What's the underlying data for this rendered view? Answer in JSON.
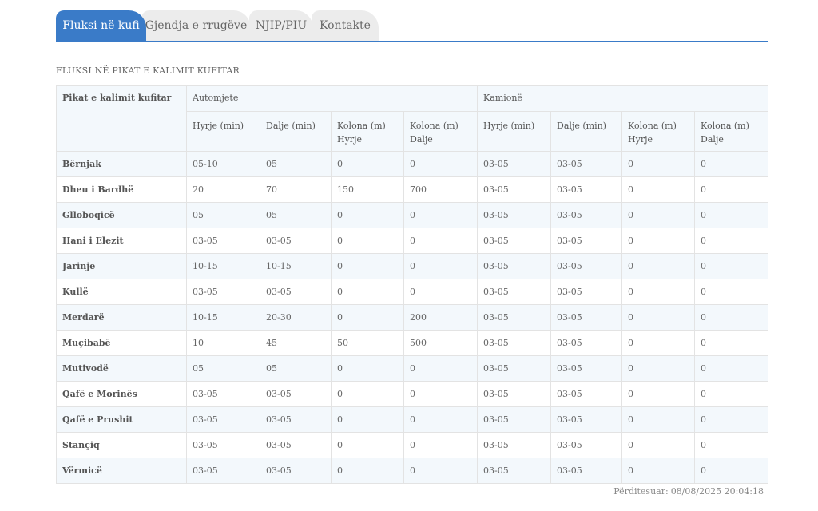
{
  "tabs": [
    {
      "label": "Fluksi në kufi",
      "active": true
    },
    {
      "label": "Gjendja e rrugëve",
      "active": false
    },
    {
      "label": "NJIP/PIU",
      "active": false
    },
    {
      "label": "Kontakte",
      "active": false
    }
  ],
  "section_title": "FLUKSI NË PIKAT E KALIMIT KUFITAR",
  "table": {
    "first_header": "Pikat e kalimit kufitar",
    "groups": [
      "Automjete",
      "Kamionë"
    ],
    "subheaders": [
      [
        "Hyrje (min)",
        "Dalje (min)",
        "Kolona (m)",
        "Hyrje",
        "Kolona (m)",
        "Dalje"
      ],
      [
        "Hyrje (min)",
        "Dalje (min)",
        "Kolona (m)",
        "Hyrje",
        "Kolona (m)",
        "Dalje"
      ]
    ],
    "rows": [
      [
        "Bërnjak",
        "05-10",
        "05",
        "0",
        "0",
        "03-05",
        "03-05",
        "0",
        "0"
      ],
      [
        "Dheu i Bardhë",
        "20",
        "70",
        "150",
        "700",
        "03-05",
        "03-05",
        "0",
        "0"
      ],
      [
        "Glloboqicë",
        "05",
        "05",
        "0",
        "0",
        "03-05",
        "03-05",
        "0",
        "0"
      ],
      [
        "Hani i Elezit",
        "03-05",
        "03-05",
        "0",
        "0",
        "03-05",
        "03-05",
        "0",
        "0"
      ],
      [
        "Jarinje",
        "10-15",
        "10-15",
        "0",
        "0",
        "03-05",
        "03-05",
        "0",
        "0"
      ],
      [
        "Kullë",
        "03-05",
        "03-05",
        "0",
        "0",
        "03-05",
        "03-05",
        "0",
        "0"
      ],
      [
        "Merdarë",
        "10-15",
        "20-30",
        "0",
        "200",
        "03-05",
        "03-05",
        "0",
        "0"
      ],
      [
        "Muçibabë",
        "10",
        "45",
        "50",
        "500",
        "03-05",
        "03-05",
        "0",
        "0"
      ],
      [
        "Mutivodë",
        "05",
        "05",
        "0",
        "0",
        "03-05",
        "03-05",
        "0",
        "0"
      ],
      [
        "Qafë e Morinës",
        "03-05",
        "03-05",
        "0",
        "0",
        "03-05",
        "03-05",
        "0",
        "0"
      ],
      [
        "Qafë e Prushit",
        "03-05",
        "03-05",
        "0",
        "0",
        "03-05",
        "03-05",
        "0",
        "0"
      ],
      [
        "Stançiq",
        "03-05",
        "03-05",
        "0",
        "0",
        "03-05",
        "03-05",
        "0",
        "0"
      ],
      [
        "Vërmicë",
        "03-05",
        "03-05",
        "0",
        "0",
        "03-05",
        "03-05",
        "0",
        "0"
      ]
    ]
  },
  "updated": {
    "label": "Përditesuar:",
    "value": "08/08/2025 20:04:18"
  },
  "colors": {
    "accent": "#3a7bc8",
    "header_bg": "#f3f8fc",
    "tab_inactive": "#ececec"
  }
}
